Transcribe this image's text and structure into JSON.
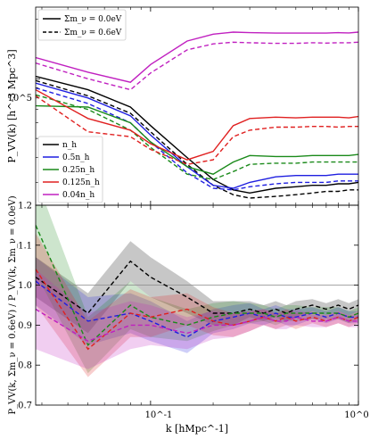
{
  "chart_data": [
    {
      "panel": "top",
      "type": "line",
      "xscale": "log",
      "yscale": "log",
      "xlim": [
        0.028,
        1.0
      ],
      "ylim": [
        23000,
        230000
      ],
      "ylabel": "P_VV(k) [h^-3 Mpc^3]",
      "yticks": [
        {
          "value": 100000,
          "label": "10^5"
        }
      ],
      "legend_style": {
        "position": "top-left",
        "entries": [
          {
            "label": "Σm_ν = 0.0eV",
            "dash": "solid"
          },
          {
            "label": "Σm_ν = 0.6eV",
            "dash": "dashed"
          }
        ]
      },
      "legend_tracers": {
        "position": "lower-left",
        "entries": [
          {
            "label": "n_h",
            "color": "#000000"
          },
          {
            "label": "0.5n_h",
            "color": "#1f1fe0"
          },
          {
            "label": "0.25n_h",
            "color": "#1a8a1a"
          },
          {
            "label": "0.125n_h",
            "color": "#e02020"
          },
          {
            "label": "0.04n_h",
            "color": "#c020c0"
          }
        ]
      },
      "x": [
        0.028,
        0.05,
        0.08,
        0.1,
        0.15,
        0.2,
        0.25,
        0.3,
        0.4,
        0.5,
        0.6,
        0.7,
        0.8,
        0.9,
        1.0
      ],
      "series": [
        {
          "tracer": "n_h",
          "mnu": "0.0eV",
          "color": "#000000",
          "dash": "solid",
          "values": [
            103000,
            88000,
            72000,
            58000,
            40000,
            31000,
            27500,
            26500,
            28000,
            28500,
            29000,
            29000,
            29500,
            29500,
            30000
          ]
        },
        {
          "tracer": "n_h",
          "mnu": "0.6eV",
          "color": "#000000",
          "dash": "dashed",
          "values": [
            98000,
            82000,
            67000,
            54000,
            37000,
            29000,
            26000,
            25000,
            25500,
            26000,
            26500,
            27000,
            27000,
            27500,
            27500
          ]
        },
        {
          "tracer": "0.5n_h",
          "mnu": "0.0eV",
          "color": "#1f1fe0",
          "dash": "solid",
          "values": [
            95000,
            80000,
            65000,
            52000,
            36000,
            29000,
            28000,
            30000,
            32000,
            32500,
            32500,
            32500,
            33000,
            33000,
            33000
          ]
        },
        {
          "tracer": "0.5n_h",
          "mnu": "0.6eV",
          "color": "#1f1fe0",
          "dash": "dashed",
          "values": [
            90000,
            75000,
            60000,
            48000,
            33500,
            28000,
            27500,
            28500,
            29500,
            30000,
            30000,
            30000,
            30500,
            30500,
            30500
          ]
        },
        {
          "tracer": "0.25n_h",
          "mnu": "0.0eV",
          "color": "#1a8a1a",
          "dash": "solid",
          "values": [
            73000,
            72000,
            60000,
            48000,
            36000,
            33000,
            38000,
            41000,
            40500,
            40500,
            41000,
            41000,
            41000,
            41000,
            41500
          ]
        },
        {
          "tracer": "0.25n_h",
          "mnu": "0.6eV",
          "color": "#1a8a1a",
          "dash": "dashed",
          "values": [
            83000,
            70000,
            55000,
            45000,
            33000,
            31000,
            34000,
            37000,
            37500,
            37500,
            38000,
            38000,
            38000,
            38000,
            38000
          ]
        },
        {
          "tracer": "0.125n_h",
          "mnu": "0.0eV",
          "color": "#e02020",
          "dash": "solid",
          "values": [
            88000,
            63000,
            55000,
            47000,
            39000,
            43000,
            58000,
            63000,
            64000,
            63500,
            64000,
            64000,
            64000,
            63500,
            64500
          ]
        },
        {
          "tracer": "0.125n_h",
          "mnu": "0.6eV",
          "color": "#e02020",
          "dash": "dashed",
          "values": [
            82000,
            54000,
            51000,
            44000,
            37000,
            39000,
            51000,
            55000,
            57000,
            57000,
            57500,
            57500,
            57000,
            57500,
            57500
          ]
        },
        {
          "tracer": "0.04n_h",
          "mnu": "0.0eV",
          "color": "#c020c0",
          "dash": "solid",
          "values": [
            128000,
            108000,
            96000,
            118000,
            155000,
            168000,
            172000,
            171000,
            170000,
            170000,
            170000,
            170000,
            171000,
            170500,
            172000
          ]
        },
        {
          "tracer": "0.04n_h",
          "mnu": "0.6eV",
          "color": "#c020c0",
          "dash": "dashed",
          "values": [
            120000,
            100000,
            88000,
            107000,
            140000,
            150000,
            153000,
            152000,
            151000,
            151000,
            152000,
            151500,
            152000,
            152000,
            153000
          ]
        }
      ]
    },
    {
      "panel": "bottom",
      "type": "area",
      "xscale": "log",
      "xlim": [
        0.028,
        1.0
      ],
      "ylim": [
        0.7,
        1.2
      ],
      "xlabel": "k [hMpc^-1]",
      "ylabel": "P_VV(k, Σm_ν = 0.6eV) / P_VV(k, Σm_ν = 0.0eV)",
      "yticks": [
        0.7,
        0.8,
        0.9,
        1.0,
        1.1,
        1.2
      ],
      "xticks": [
        {
          "value": 0.1,
          "label": "10^-1"
        },
        {
          "value": 1.0,
          "label": "10^0"
        }
      ],
      "reference_line": 1.0,
      "x": [
        0.028,
        0.05,
        0.08,
        0.1,
        0.15,
        0.2,
        0.25,
        0.3,
        0.35,
        0.4,
        0.45,
        0.5,
        0.6,
        0.7,
        0.8,
        0.9,
        1.0
      ],
      "series": [
        {
          "tracer": "n_h",
          "color": "#000000",
          "values": [
            1.02,
            0.93,
            1.06,
            1.02,
            0.97,
            0.93,
            0.93,
            0.94,
            0.93,
            0.94,
            0.93,
            0.94,
            0.95,
            0.94,
            0.95,
            0.94,
            0.95
          ],
          "band": [
            0.05,
            0.05,
            0.05,
            0.05,
            0.04,
            0.03,
            0.03,
            0.02,
            0.02,
            0.02,
            0.02,
            0.02,
            0.015,
            0.015,
            0.015,
            0.015,
            0.015
          ]
        },
        {
          "tracer": "0.5n_h",
          "color": "#1f1fe0",
          "values": [
            1.01,
            0.91,
            0.93,
            0.91,
            0.87,
            0.91,
            0.92,
            0.93,
            0.92,
            0.93,
            0.92,
            0.92,
            0.93,
            0.92,
            0.93,
            0.92,
            0.92
          ],
          "band": [
            0.06,
            0.06,
            0.05,
            0.05,
            0.04,
            0.03,
            0.03,
            0.025,
            0.02,
            0.02,
            0.02,
            0.02,
            0.015,
            0.015,
            0.015,
            0.015,
            0.015
          ]
        },
        {
          "tracer": "0.25n_h",
          "color": "#1a8a1a",
          "values": [
            1.15,
            0.85,
            0.95,
            0.92,
            0.9,
            0.92,
            0.93,
            0.93,
            0.93,
            0.92,
            0.93,
            0.93,
            0.93,
            0.93,
            0.93,
            0.92,
            0.93
          ],
          "band": [
            0.12,
            0.07,
            0.06,
            0.05,
            0.04,
            0.035,
            0.03,
            0.025,
            0.02,
            0.02,
            0.02,
            0.02,
            0.015,
            0.015,
            0.015,
            0.015,
            0.015
          ]
        },
        {
          "tracer": "0.125n_h",
          "color": "#e02020",
          "values": [
            1.04,
            0.84,
            0.93,
            0.92,
            0.94,
            0.91,
            0.9,
            0.91,
            0.92,
            0.91,
            0.92,
            0.91,
            0.92,
            0.91,
            0.92,
            0.91,
            0.92
          ],
          "band": [
            0.09,
            0.07,
            0.06,
            0.05,
            0.04,
            0.035,
            0.03,
            0.025,
            0.02,
            0.02,
            0.02,
            0.02,
            0.015,
            0.015,
            0.015,
            0.015,
            0.015
          ]
        },
        {
          "tracer": "0.04n_h",
          "color": "#c020c0",
          "values": [
            0.94,
            0.86,
            0.9,
            0.9,
            0.88,
            0.9,
            0.9,
            0.91,
            0.92,
            0.91,
            0.91,
            0.92,
            0.91,
            0.91,
            0.92,
            0.91,
            0.91
          ],
          "band": [
            0.1,
            0.07,
            0.06,
            0.05,
            0.04,
            0.035,
            0.03,
            0.025,
            0.02,
            0.02,
            0.02,
            0.02,
            0.015,
            0.015,
            0.015,
            0.015,
            0.015
          ]
        }
      ]
    }
  ]
}
